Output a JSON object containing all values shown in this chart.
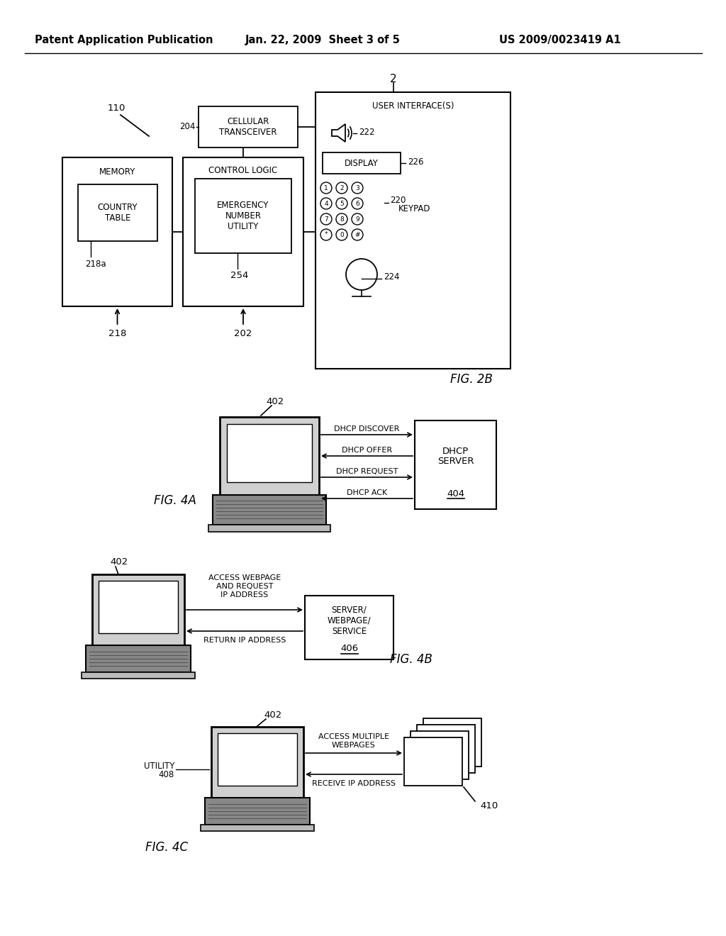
{
  "bg_color": "#ffffff",
  "header_left": "Patent Application Publication",
  "header_mid": "Jan. 22, 2009  Sheet 3 of 5",
  "header_right": "US 2009/0023419 A1"
}
